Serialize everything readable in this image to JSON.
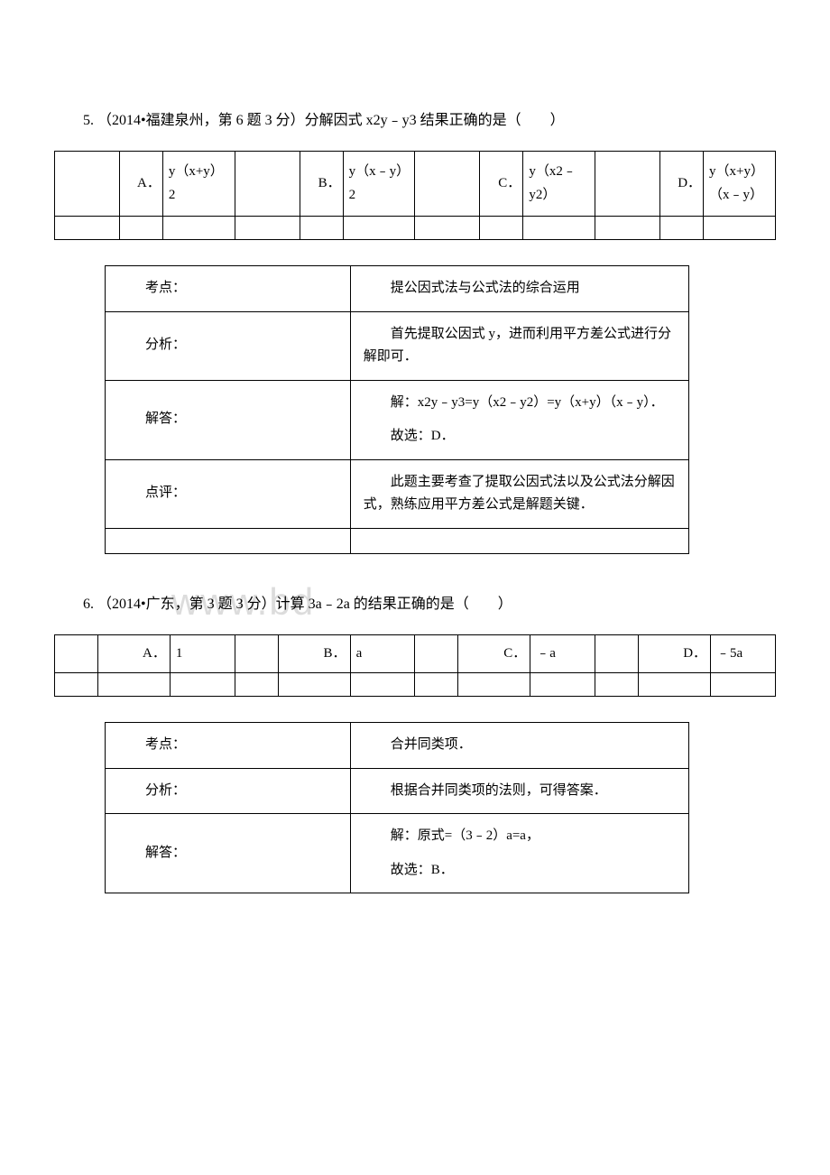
{
  "q5": {
    "text": "5. （2014•福建泉州，第 6 题 3 分）分解因式 x2y﹣y3 结果正确的是（　　）",
    "options": {
      "A": {
        "letter": "A．",
        "content": "y（x+y）2"
      },
      "B": {
        "letter": "B．",
        "content": "y（x﹣y）2"
      },
      "C": {
        "letter": "C．",
        "content": "y（x2﹣y2）"
      },
      "D": {
        "letter": "D．",
        "content": "y（x+y）（x﹣y）"
      }
    },
    "analysis": {
      "kaodian_label": "考点：",
      "kaodian_content": "提公因式法与公式法的综合运用",
      "fenxi_label": "分析：",
      "fenxi_content": "首先提取公因式 y，进而利用平方差公式进行分解即可．",
      "jieda_label": "解答：",
      "jieda_content_1": "解：x2y﹣y3=y（x2﹣y2）=y（x+y）（x﹣y）．",
      "jieda_content_2": "故选：D．",
      "dianping_label": "点评：",
      "dianping_content": "此题主要考查了提取公因式法以及公式法分解因式，熟练应用平方差公式是解题关键．"
    }
  },
  "q6": {
    "text": "6. （2014•广东，第 3 题 3 分）计算 3a﹣2a 的结果正确的是（　　）",
    "options": {
      "A": {
        "letter": "A．",
        "content": "1"
      },
      "B": {
        "letter": "B．",
        "content": "a"
      },
      "C": {
        "letter": "C．",
        "content": "﹣a"
      },
      "D": {
        "letter": "D．",
        "content": "﹣5a"
      }
    },
    "analysis": {
      "kaodian_label": "考点：",
      "kaodian_content": "合并同类项．",
      "fenxi_label": "分析：",
      "fenxi_content": "根据合并同类项的法则，可得答案．",
      "jieda_label": "解答：",
      "jieda_content_1": "解：原式=（3﹣2）a=a，",
      "jieda_content_2": "故选：B．"
    }
  },
  "watermark": "www.bd"
}
